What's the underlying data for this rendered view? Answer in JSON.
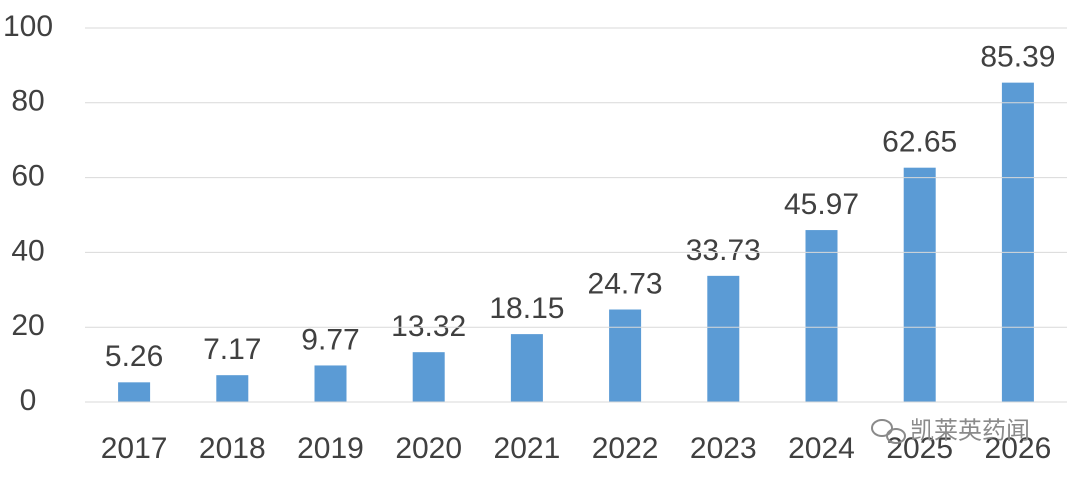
{
  "chart_data": {
    "type": "bar",
    "categories": [
      "2017",
      "2018",
      "2019",
      "2020",
      "2021",
      "2022",
      "2023",
      "2024",
      "2025",
      "2026"
    ],
    "values": [
      5.26,
      7.17,
      9.77,
      13.32,
      18.15,
      24.73,
      33.73,
      45.97,
      62.65,
      85.39
    ],
    "color": "#5b9bd5",
    "ylim": [
      0,
      100
    ],
    "yticks": [
      0,
      20,
      40,
      60,
      80,
      100
    ],
    "grid": true,
    "watermark": "凯莱英药闻"
  }
}
